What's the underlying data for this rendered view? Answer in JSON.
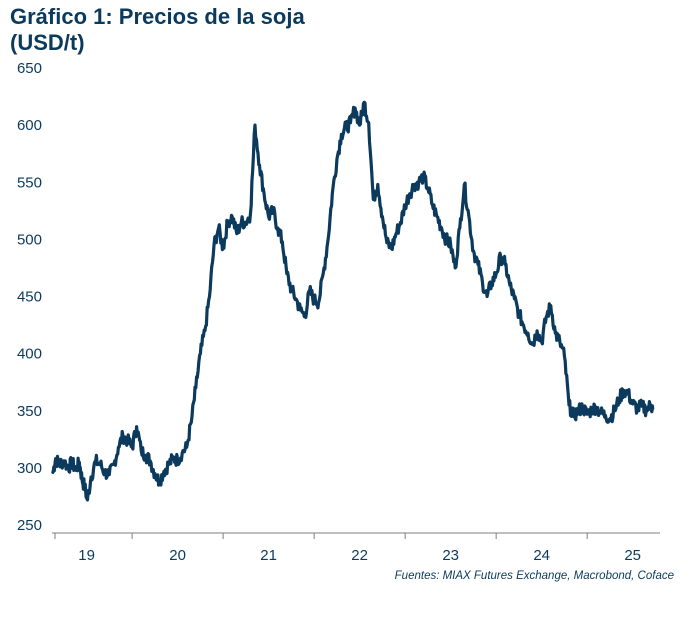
{
  "title_line1": "Gráfico 1: Precios de la soja",
  "title_line2": "(USD/t)",
  "source": "Fuentes: MIAX Futures Exchange, Macrobond, Coface",
  "colors": {
    "line": "#0b3a5d",
    "text": "#0b3a5d",
    "axis": "#7f7f7f"
  },
  "chart_data": {
    "type": "line",
    "title": "Gráfico 1: Precios de la soja (USD/t)",
    "xlabel": "",
    "ylabel": "",
    "ylim": [
      250,
      650
    ],
    "yticks": [
      250,
      300,
      350,
      400,
      450,
      500,
      550,
      600,
      650
    ],
    "xlim": [
      18.62,
      25.3
    ],
    "xticks": [
      "19",
      "20",
      "21",
      "22",
      "23",
      "24",
      "25"
    ],
    "grid": false,
    "legend": "none",
    "series": [
      {
        "x": [
          18.63,
          18.66,
          18.7,
          18.75,
          18.8,
          18.84,
          18.88,
          18.92,
          18.95,
          18.98,
          19.01,
          19.05,
          19.1,
          19.15,
          19.2,
          19.25,
          19.3,
          19.35,
          19.4,
          19.45,
          19.5,
          19.55,
          19.6,
          19.65,
          19.7,
          19.75,
          19.8,
          19.85,
          19.9,
          19.95,
          20.0,
          20.05,
          20.1,
          20.15,
          20.2,
          20.25,
          20.3,
          20.35,
          20.4,
          20.45,
          20.5,
          20.55,
          20.6,
          20.65,
          20.7,
          20.75,
          20.8,
          20.85,
          20.9,
          20.95,
          21.0,
          21.05,
          21.1,
          21.15,
          21.2,
          21.25,
          21.3,
          21.35,
          21.4,
          21.45,
          21.5,
          21.55,
          21.6,
          21.65,
          21.7,
          21.75,
          21.8,
          21.85,
          21.9,
          21.95,
          22.0,
          22.05,
          22.1,
          22.15,
          22.2,
          22.25,
          22.3,
          22.35,
          22.4,
          22.45,
          22.5,
          22.55,
          22.6,
          22.65,
          22.7,
          22.75,
          22.8,
          22.85,
          22.9,
          22.95,
          23.0,
          23.05,
          23.1,
          23.15,
          23.2,
          23.25,
          23.3,
          23.35,
          23.4,
          23.45,
          23.5,
          23.55,
          23.6,
          23.65,
          23.7,
          23.75,
          23.8,
          23.85,
          23.9,
          23.95,
          24.0,
          24.05,
          24.1,
          24.15,
          24.2,
          24.25,
          24.3,
          24.35,
          24.4,
          24.45,
          24.5,
          24.55,
          24.6,
          24.65,
          24.7,
          24.75,
          24.8,
          24.85,
          24.9,
          24.95,
          25.0,
          25.05,
          25.1,
          25.15,
          25.2,
          25.22
        ],
        "values": [
          296,
          308,
          303,
          306,
          300,
          305,
          298,
          305,
          290,
          283,
          272,
          292,
          306,
          303,
          296,
          294,
          303,
          318,
          328,
          324,
          318,
          336,
          315,
          311,
          306,
          295,
          288,
          297,
          303,
          308,
          307,
          313,
          318,
          340,
          370,
          400,
          420,
          450,
          495,
          510,
          492,
          515,
          520,
          505,
          515,
          515,
          522,
          600,
          565,
          540,
          520,
          525,
          510,
          498,
          470,
          456,
          448,
          438,
          433,
          455,
          447,
          445,
          470,
          498,
          540,
          570,
          592,
          598,
          602,
          615,
          600,
          620,
          602,
          535,
          548,
          520,
          497,
          492,
          505,
          515,
          530,
          540,
          548,
          550,
          555,
          545,
          530,
          520,
          510,
          500,
          495,
          475,
          510,
          548,
          520,
          490,
          478,
          462,
          450,
          462,
          470,
          485,
          478,
          460,
          448,
          435,
          425,
          418,
          408,
          420,
          410,
          432,
          442,
          418,
          410,
          398,
          355,
          345,
          350,
          353,
          347,
          351,
          353,
          348,
          346,
          343,
          350,
          360,
          368,
          365,
          356,
          352,
          354,
          351,
          355,
          352
        ]
      }
    ]
  }
}
